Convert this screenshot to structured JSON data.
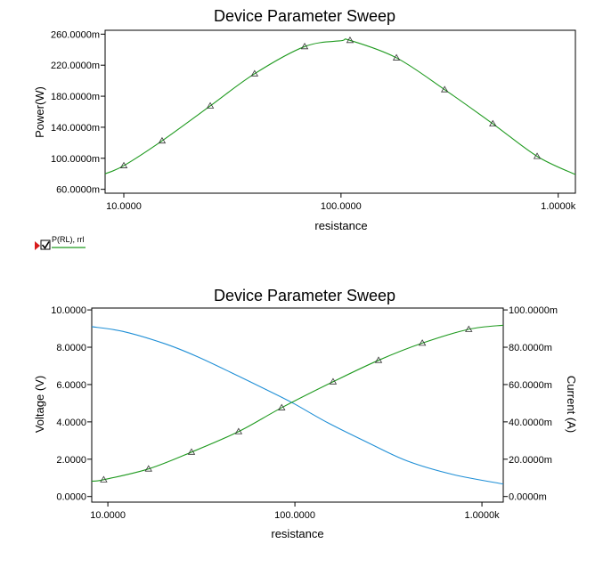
{
  "chart_data": [
    {
      "type": "line",
      "title": "Device Parameter Sweep",
      "xlabel": "resistance",
      "ylabel": "Power(W)",
      "xscale": "log",
      "xlim": [
        8.2,
        1200
      ],
      "ylim": [
        0.055,
        0.265
      ],
      "x_ticks": [
        {
          "value": 10,
          "label": "10.0000"
        },
        {
          "value": 100,
          "label": "100.0000"
        },
        {
          "value": 1000,
          "label": "1.0000k"
        }
      ],
      "y_ticks": [
        {
          "value": 0.06,
          "label": "60.0000m"
        },
        {
          "value": 0.1,
          "label": "100.0000m"
        },
        {
          "value": 0.14,
          "label": "140.0000m"
        },
        {
          "value": 0.18,
          "label": "180.0000m"
        },
        {
          "value": 0.22,
          "label": "220.0000m"
        },
        {
          "value": 0.26,
          "label": "260.0000m"
        }
      ],
      "legend": {
        "label": "P(RL), rrl",
        "checked": true
      },
      "series": [
        {
          "name": "P(RL), rrl",
          "color": "#1f9a1f",
          "marker": "triangle",
          "points": [
            {
              "x": 8.2,
              "y": 0.08
            },
            {
              "x": 10,
              "y": 0.0905
            },
            {
              "x": 15,
              "y": 0.1225
            },
            {
              "x": 25,
              "y": 0.1675
            },
            {
              "x": 40,
              "y": 0.209
            },
            {
              "x": 68,
              "y": 0.244
            },
            {
              "x": 100,
              "y": 0.2515
            },
            {
              "x": 110,
              "y": 0.252
            },
            {
              "x": 180,
              "y": 0.2295
            },
            {
              "x": 300,
              "y": 0.1885
            },
            {
              "x": 500,
              "y": 0.1445
            },
            {
              "x": 800,
              "y": 0.1025
            },
            {
              "x": 1200,
              "y": 0.079
            }
          ],
          "markers_at": [
            10,
            15,
            25,
            40,
            68,
            110,
            180,
            300,
            500,
            800
          ]
        }
      ]
    },
    {
      "type": "line",
      "title": "Device Parameter Sweep",
      "xlabel": "resistance",
      "ylabel": "Voltage (V)",
      "y2label": "Current (A)",
      "xscale": "log",
      "xlim": [
        8.2,
        1300
      ],
      "ylim": [
        -0.3,
        10.1
      ],
      "y2lim": [
        -0.003,
        0.101
      ],
      "x_ticks": [
        {
          "value": 10,
          "label": "10.0000"
        },
        {
          "value": 100,
          "label": "100.0000"
        },
        {
          "value": 1000,
          "label": "1.0000k"
        }
      ],
      "y_ticks": [
        {
          "value": 0,
          "label": "0.0000"
        },
        {
          "value": 2,
          "label": "2.0000"
        },
        {
          "value": 4,
          "label": "4.0000"
        },
        {
          "value": 6,
          "label": "6.0000"
        },
        {
          "value": 8,
          "label": "8.0000"
        },
        {
          "value": 10,
          "label": "10.0000"
        }
      ],
      "y2_ticks": [
        {
          "value": 0,
          "label": "0.0000m"
        },
        {
          "value": 0.02,
          "label": "20.0000m"
        },
        {
          "value": 0.04,
          "label": "40.0000m"
        },
        {
          "value": 0.06,
          "label": "60.0000m"
        },
        {
          "value": 0.08,
          "label": "80.0000m"
        },
        {
          "value": 0.1,
          "label": "100.0000m"
        }
      ],
      "series": [
        {
          "color": "#1f8fd6",
          "axis": "y2",
          "marker": "none",
          "points": [
            {
              "x": 8.2,
              "y": 0.091
            },
            {
              "x": 12,
              "y": 0.0885
            },
            {
              "x": 20,
              "y": 0.082
            },
            {
              "x": 30,
              "y": 0.075
            },
            {
              "x": 50,
              "y": 0.0645
            },
            {
              "x": 80,
              "y": 0.0545
            },
            {
              "x": 100,
              "y": 0.0495
            },
            {
              "x": 150,
              "y": 0.0395
            },
            {
              "x": 250,
              "y": 0.0285
            },
            {
              "x": 400,
              "y": 0.019
            },
            {
              "x": 700,
              "y": 0.0118
            },
            {
              "x": 1300,
              "y": 0.0067
            }
          ]
        },
        {
          "color": "#1f9a1f",
          "axis": "y",
          "marker": "triangle",
          "points": [
            {
              "x": 8.2,
              "y": 0.82
            },
            {
              "x": 9.5,
              "y": 0.9
            },
            {
              "x": 16.5,
              "y": 1.48
            },
            {
              "x": 28,
              "y": 2.38
            },
            {
              "x": 50,
              "y": 3.48
            },
            {
              "x": 85,
              "y": 4.76
            },
            {
              "x": 160,
              "y": 6.15
            },
            {
              "x": 280,
              "y": 7.3
            },
            {
              "x": 480,
              "y": 8.22
            },
            {
              "x": 850,
              "y": 8.96
            },
            {
              "x": 1300,
              "y": 9.18
            }
          ],
          "markers_at": [
            9.5,
            16.5,
            28,
            50,
            85,
            160,
            280,
            480,
            850
          ]
        }
      ]
    }
  ]
}
